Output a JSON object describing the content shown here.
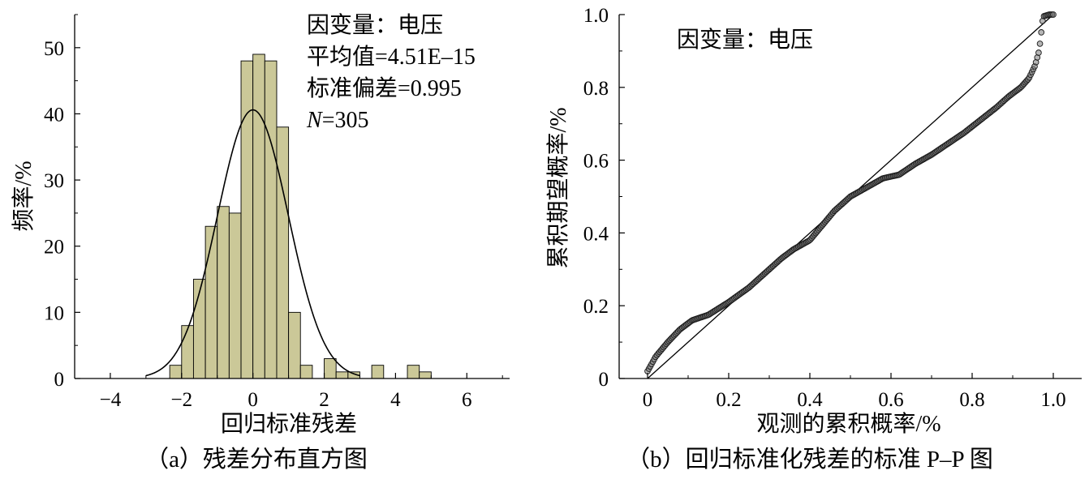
{
  "chart_data": [
    {
      "type": "bar",
      "panel": "a",
      "caption": "（a）残差分布直方图",
      "xlabel": "回归标准残差",
      "ylabel": "频率/%",
      "xlim": [
        -5,
        7.2
      ],
      "ylim": [
        0,
        55
      ],
      "xticks": [
        -4,
        -2,
        0,
        2,
        4,
        6
      ],
      "xtick_labels": [
        "−4",
        "−2",
        "0",
        "2",
        "4",
        "6"
      ],
      "yticks": [
        0,
        10,
        20,
        30,
        40,
        50
      ],
      "bin_width": 0.3333,
      "bins": [
        {
          "x0": -2.333,
          "x1": -2.0,
          "value": 2
        },
        {
          "x0": -2.0,
          "x1": -1.667,
          "value": 8
        },
        {
          "x0": -1.667,
          "x1": -1.333,
          "value": 15
        },
        {
          "x0": -1.333,
          "x1": -1.0,
          "value": 23
        },
        {
          "x0": -1.0,
          "x1": -0.667,
          "value": 26
        },
        {
          "x0": -0.667,
          "x1": -0.333,
          "value": 25
        },
        {
          "x0": -0.333,
          "x1": 0.0,
          "value": 48
        },
        {
          "x0": 0.0,
          "x1": 0.333,
          "value": 49
        },
        {
          "x0": 0.333,
          "x1": 0.667,
          "value": 48
        },
        {
          "x0": 0.667,
          "x1": 1.0,
          "value": 38
        },
        {
          "x0": 1.0,
          "x1": 1.333,
          "value": 10
        },
        {
          "x0": 1.333,
          "x1": 1.667,
          "value": 2
        },
        {
          "x0": 2.0,
          "x1": 2.333,
          "value": 3
        },
        {
          "x0": 2.333,
          "x1": 2.667,
          "value": 1
        },
        {
          "x0": 2.667,
          "x1": 3.0,
          "value": 1
        },
        {
          "x0": 3.333,
          "x1": 3.667,
          "value": 2
        },
        {
          "x0": 4.333,
          "x1": 4.667,
          "value": 2
        },
        {
          "x0": 4.667,
          "x1": 5.0,
          "value": 1
        }
      ],
      "normal_curve": {
        "mean": 0,
        "sd": 0.995,
        "peak": 40.6
      },
      "annotations": {
        "title": "因变量：电压",
        "mean": "平均值=4.51E–15",
        "sd": "标准偏差=0.995",
        "n_label": "N",
        "n_value": "=305"
      },
      "bar_color": "#cbc898",
      "grid": false
    },
    {
      "type": "scatter",
      "panel": "b",
      "caption": "（b）回归标准化残差的标准 P–P 图",
      "xlabel": "观测的累积概率/%",
      "ylabel": "累积期望概率/%",
      "xlim": [
        -0.07,
        1.07
      ],
      "ylim": [
        0,
        1.0
      ],
      "xticks": [
        0,
        0.2,
        0.4,
        0.6,
        0.8,
        1.0
      ],
      "xtick_labels": [
        "0",
        "0.2",
        "0.4",
        "0.6",
        "0.8",
        "1.0"
      ],
      "yticks": [
        0,
        0.2,
        0.4,
        0.6,
        0.8,
        1.0
      ],
      "ytick_labels": [
        "0",
        "0.2",
        "0.4",
        "0.6",
        "0.8",
        "1.0"
      ],
      "annotation": "因变量：电压",
      "reference_line": [
        [
          0,
          0
        ],
        [
          1,
          1
        ]
      ],
      "curve_points": [
        [
          0.0,
          0.02
        ],
        [
          0.02,
          0.06
        ],
        [
          0.05,
          0.1
        ],
        [
          0.08,
          0.135
        ],
        [
          0.11,
          0.16
        ],
        [
          0.15,
          0.175
        ],
        [
          0.2,
          0.21
        ],
        [
          0.25,
          0.25
        ],
        [
          0.29,
          0.29
        ],
        [
          0.33,
          0.33
        ],
        [
          0.36,
          0.355
        ],
        [
          0.4,
          0.38
        ],
        [
          0.43,
          0.42
        ],
        [
          0.46,
          0.46
        ],
        [
          0.5,
          0.5
        ],
        [
          0.54,
          0.525
        ],
        [
          0.58,
          0.55
        ],
        [
          0.62,
          0.56
        ],
        [
          0.66,
          0.59
        ],
        [
          0.7,
          0.615
        ],
        [
          0.74,
          0.645
        ],
        [
          0.78,
          0.675
        ],
        [
          0.82,
          0.71
        ],
        [
          0.86,
          0.745
        ],
        [
          0.89,
          0.775
        ],
        [
          0.92,
          0.8
        ],
        [
          0.94,
          0.825
        ],
        [
          0.955,
          0.86
        ],
        [
          0.965,
          0.9
        ],
        [
          0.975,
          0.995
        ],
        [
          0.99,
          1.0
        ],
        [
          1.0,
          1.0
        ]
      ],
      "n_points": 305,
      "grid": false
    }
  ]
}
